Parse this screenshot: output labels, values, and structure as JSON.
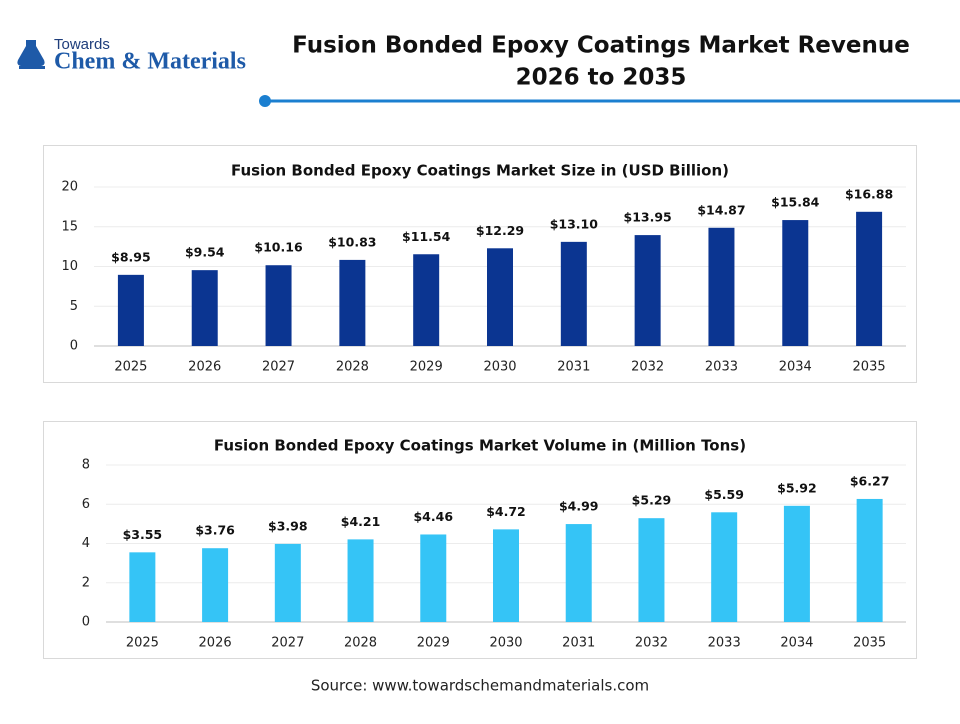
{
  "header": {
    "logo_small": "Towards",
    "logo_large": "Chem & Materials",
    "title_line1": "Fusion Bonded Epoxy Coatings Market Revenue",
    "title_line2": "2026 to 2035"
  },
  "chart_data": [
    {
      "type": "bar",
      "title": "Fusion Bonded Epoxy Coatings Market Size in (USD Billion)",
      "categories": [
        "2025",
        "2026",
        "2027",
        "2028",
        "2029",
        "2030",
        "2031",
        "2032",
        "2033",
        "2034",
        "2035"
      ],
      "values": [
        8.95,
        9.54,
        10.16,
        10.83,
        11.54,
        12.29,
        13.1,
        13.95,
        14.87,
        15.84,
        16.88
      ],
      "value_labels": [
        "$8.95",
        "$9.54",
        "$10.16",
        "$10.83",
        "$11.54",
        "$12.29",
        "$13.10",
        "$13.95",
        "$14.87",
        "$15.84",
        "$16.88"
      ],
      "color": "#0b3591",
      "ylim": [
        0,
        20
      ],
      "yticks": [
        0,
        5,
        10,
        15,
        20
      ],
      "grid": true
    },
    {
      "type": "bar",
      "title": "Fusion Bonded Epoxy Coatings Market Volume in (Million Tons)",
      "categories": [
        "2025",
        "2026",
        "2027",
        "2028",
        "2029",
        "2030",
        "2031",
        "2032",
        "2033",
        "2034",
        "2035"
      ],
      "values": [
        3.55,
        3.76,
        3.98,
        4.21,
        4.46,
        4.72,
        4.99,
        5.29,
        5.59,
        5.92,
        6.27
      ],
      "value_labels": [
        "$3.55",
        "$3.76",
        "$3.98",
        "$4.21",
        "$4.46",
        "$4.72",
        "$4.99",
        "$5.29",
        "$5.59",
        "$5.92",
        "$6.27"
      ],
      "color": "#35c4f6",
      "ylim": [
        0,
        8
      ],
      "yticks": [
        0,
        2,
        4,
        6,
        8
      ],
      "grid": true
    }
  ],
  "source": "Source: www.towardschemandmaterials.com"
}
